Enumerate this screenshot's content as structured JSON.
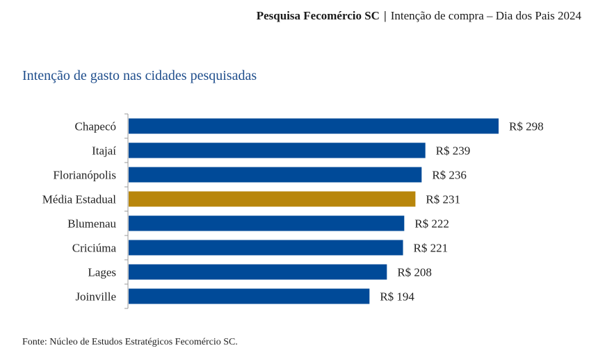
{
  "header": {
    "org": "Pesquisa Fecomércio SC",
    "separator": "|",
    "subject": "Intenção de compra – Dia dos Pais 2024"
  },
  "chart_data": {
    "type": "bar",
    "orientation": "horizontal",
    "title": "Intenção de gasto nas cidades pesquisadas",
    "categories": [
      "Chapecó",
      "Itajaí",
      "Florianópolis",
      "Média Estadual",
      "Blumenau",
      "Criciúma",
      "Lages",
      "Joinville"
    ],
    "values": [
      298,
      239,
      236,
      231,
      222,
      221,
      208,
      194
    ],
    "value_labels": [
      "R$ 298",
      "R$ 239",
      "R$ 236",
      "R$ 231",
      "R$ 222",
      "R$ 221",
      "R$ 208",
      "R$ 194"
    ],
    "colors": [
      "#004a98",
      "#004a98",
      "#004a98",
      "#b8860b",
      "#004a98",
      "#004a98",
      "#004a98",
      "#004a98"
    ],
    "xlim": [
      0,
      298
    ],
    "grid": false
  },
  "footer": {
    "source": "Fonte: Núcleo de Estudos Estratégicos Fecomércio SC."
  }
}
